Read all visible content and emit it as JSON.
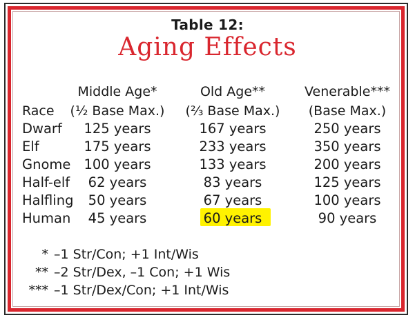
{
  "table": {
    "number": "Table 12:",
    "title": "Aging Effects",
    "headers": {
      "race": "Race",
      "middle_line1": "Middle Age*",
      "middle_line2": "(½ Base Max.)",
      "old_line1": "Old Age**",
      "old_line2": "(⅔ Base Max.)",
      "venerable_line1": "Venerable***",
      "venerable_line2": "(Base Max.)"
    },
    "rows": [
      {
        "race": "Dwarf",
        "middle": "125 years",
        "old": "167 years",
        "venerable": "250 years"
      },
      {
        "race": "Elf",
        "middle": "175 years",
        "old": "233 years",
        "venerable": "350 years"
      },
      {
        "race": "Gnome",
        "middle": "100 years",
        "old": "133 years",
        "venerable": "200 years"
      },
      {
        "race": "Half-elf",
        "middle": "62 years",
        "old": "83 years",
        "venerable": "125 years"
      },
      {
        "race": "Halfling",
        "middle": "50 years",
        "old": "67 years",
        "venerable": "100 years"
      },
      {
        "race": "Human",
        "middle": "45 years",
        "old": "60 years",
        "venerable": "90 years"
      }
    ],
    "footnotes": [
      {
        "mark": "*",
        "text": "–1 Str/Con; +1 Int/Wis"
      },
      {
        "mark": "**",
        "text": "–2 Str/Dex, –1 Con; +1 Wis"
      },
      {
        "mark": "***",
        "text": "–1 Str/Dex/Con; +1 Int/Wis"
      }
    ]
  },
  "colors": {
    "title_red": "#d9262e",
    "border_red": "#d9262e",
    "highlight_yellow": "#fff200",
    "text": "#1a1a1a"
  }
}
